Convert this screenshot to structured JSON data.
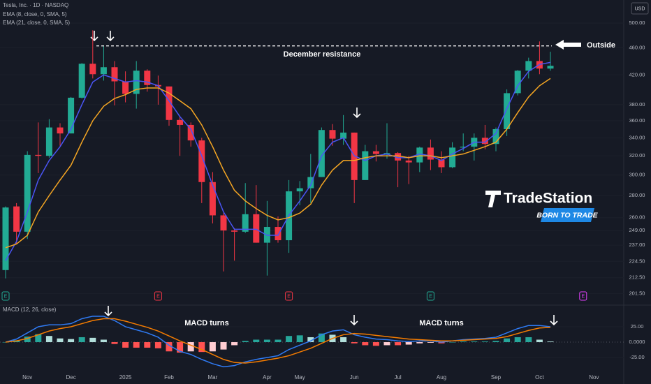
{
  "chart_data": [
    {
      "type": "candlestick",
      "title": "Tesla, Inc. · 1D · NASDAQ",
      "currency": "USD",
      "categories": [
        null,
        null,
        "Nov",
        null,
        null,
        null,
        "Dec",
        null,
        null,
        null,
        null,
        "2025",
        null,
        null,
        null,
        "Feb",
        null,
        null,
        null,
        "Mar",
        null,
        null,
        null,
        null,
        "Apr",
        null,
        null,
        "May",
        null,
        null,
        null,
        null,
        "Jun",
        null,
        null,
        null,
        "Jul",
        null,
        null,
        null,
        "Aug",
        null,
        null,
        null,
        null,
        "Sep",
        null,
        null,
        null,
        "Oct",
        null,
        null,
        null,
        null,
        "Nov",
        null,
        null
      ],
      "open": [
        218,
        270,
        248,
        321,
        320,
        352,
        345,
        389,
        436,
        421,
        431,
        411,
        394,
        426,
        406,
        404,
        361,
        355,
        337,
        293,
        262,
        249,
        248,
        263,
        239,
        252,
        241,
        284,
        287,
        298,
        349,
        339,
        346,
        295,
        325,
        322,
        323,
        315,
        313,
        329,
        316,
        308,
        329,
        330,
        340,
        333,
        350,
        395,
        426,
        440,
        429,
        null,
        null,
        null,
        null,
        null,
        null
      ],
      "high": [
        270,
        273,
        325,
        358,
        362,
        357,
        390,
        437,
        488,
        463,
        440,
        425,
        440,
        428,
        419,
        404,
        365,
        358,
        340,
        303,
        264,
        251,
        292,
        290,
        275,
        261,
        295,
        294,
        322,
        352,
        356,
        367,
        346,
        332,
        332,
        357,
        324,
        320,
        330,
        338,
        325,
        335,
        345,
        345,
        355,
        352,
        400,
        427,
        445,
        470,
        454,
        null,
        null,
        null,
        null,
        null,
        null
      ],
      "low": [
        212,
        238,
        242,
        302,
        318,
        331,
        345,
        388,
        415,
        412,
        379,
        383,
        375,
        397,
        380,
        354,
        320,
        330,
        273,
        255,
        217,
        225,
        247,
        239,
        214,
        239,
        231,
        271,
        273,
        298,
        331,
        332,
        273,
        297,
        314,
        317,
        288,
        291,
        303,
        305,
        302,
        307,
        325,
        315,
        327,
        325,
        342,
        392,
        415,
        421,
        426,
        null,
        null,
        null,
        null,
        null,
        null
      ],
      "close": [
        269,
        248,
        321,
        320,
        352,
        345,
        389,
        436,
        421,
        431,
        411,
        394,
        426,
        406,
        404,
        361,
        355,
        337,
        293,
        262,
        249,
        248,
        263,
        239,
        252,
        241,
        284,
        287,
        298,
        349,
        339,
        346,
        295,
        325,
        322,
        323,
        315,
        313,
        329,
        316,
        308,
        329,
        330,
        340,
        333,
        350,
        395,
        426,
        440,
        429,
        433,
        null,
        null,
        null,
        null,
        null,
        null
      ],
      "up_color": "#22ab94",
      "down_color": "#f23645",
      "series": [
        {
          "name": "EMA (8, close, 0, SMA, 5)",
          "color": "#4a55f5",
          "values": [
            225,
            240,
            265,
            295,
            315,
            330,
            350,
            380,
            410,
            420,
            415,
            410,
            412,
            410,
            405,
            385,
            365,
            350,
            320,
            290,
            265,
            250,
            250,
            250,
            245,
            245,
            262,
            275,
            290,
            320,
            335,
            340,
            320,
            315,
            320,
            322,
            318,
            318,
            322,
            320,
            315,
            322,
            328,
            335,
            335,
            345,
            375,
            405,
            425,
            435,
            438,
            null,
            null,
            null,
            null,
            null,
            null
          ]
        },
        {
          "name": "EMA (21, close, 0, SMA, 5)",
          "color": "#f5a623",
          "values": [
            235,
            238,
            245,
            265,
            280,
            295,
            310,
            335,
            360,
            378,
            388,
            393,
            400,
            402,
            402,
            395,
            385,
            375,
            355,
            330,
            305,
            285,
            275,
            268,
            262,
            258,
            260,
            264,
            272,
            290,
            305,
            315,
            315,
            318,
            320,
            320,
            320,
            318,
            320,
            320,
            318,
            320,
            322,
            326,
            330,
            335,
            350,
            370,
            390,
            405,
            415,
            null,
            null,
            null,
            null,
            null,
            null
          ]
        }
      ],
      "ylim": [
        197,
        513
      ],
      "log_scale": true,
      "grid": true,
      "yticks": [
        {
          "value": 201.5,
          "label": "201.50"
        },
        {
          "value": 212.5,
          "label": "212.50"
        },
        {
          "value": 224.5,
          "label": "224.50"
        },
        {
          "value": 237,
          "label": "237.00"
        },
        {
          "value": 249,
          "label": "249.00"
        },
        {
          "value": 260,
          "label": "260.00"
        },
        {
          "value": 280,
          "label": "280.00"
        },
        {
          "value": 300,
          "label": "300.00"
        },
        {
          "value": 320,
          "label": "320.00"
        },
        {
          "value": 340,
          "label": "340.00"
        },
        {
          "value": 360,
          "label": "360.00"
        },
        {
          "value": 380,
          "label": "380.00"
        },
        {
          "value": 420,
          "label": "420.00"
        },
        {
          "value": 460,
          "label": "460.00"
        },
        {
          "value": 500,
          "label": "500.00"
        }
      ],
      "resistance": {
        "value": 463,
        "label": "December resistance"
      },
      "outside_label": "Outside",
      "earnings": [
        {
          "label": "E",
          "index": 0,
          "color": "#22ab94"
        },
        {
          "label": "E",
          "index": 14,
          "color": "#f23645"
        },
        {
          "label": "E",
          "index": 26,
          "color": "#f23645"
        },
        {
          "label": "E",
          "index": 39,
          "color": "#22ab94"
        },
        {
          "label": "E",
          "index": 53,
          "color": "#e040fb"
        }
      ],
      "logo": {
        "name": "TradeStation",
        "tagline": "BORN TO TRADE"
      }
    },
    {
      "type": "macd",
      "title": "MACD (12, 26, close)",
      "macd_values": [
        0,
        5,
        15,
        25,
        28,
        28,
        30,
        38,
        42,
        42,
        35,
        25,
        20,
        15,
        8,
        -5,
        -15,
        -20,
        -28,
        -35,
        -40,
        -38,
        -32,
        -28,
        -25,
        -22,
        -12,
        -5,
        2,
        12,
        18,
        20,
        12,
        8,
        5,
        4,
        2,
        1,
        2,
        2,
        0,
        2,
        4,
        5,
        6,
        8,
        15,
        22,
        27,
        27,
        25
      ],
      "macd_color": "#2f7bf5",
      "signal_values": [
        0,
        2,
        6,
        12,
        18,
        22,
        25,
        30,
        35,
        38,
        38,
        34,
        29,
        24,
        18,
        10,
        2,
        -5,
        -12,
        -20,
        -28,
        -33,
        -34,
        -32,
        -29,
        -26,
        -22,
        -16,
        -10,
        -2,
        6,
        12,
        14,
        13,
        11,
        9,
        7,
        5,
        4,
        3,
        2,
        2,
        3,
        4,
        5,
        6,
        9,
        14,
        19,
        23,
        24
      ],
      "signal_color": "#f57c00",
      "histogram_values": [
        0,
        3,
        9,
        13,
        10,
        6,
        5,
        8,
        7,
        4,
        -3,
        -9,
        -9,
        -9,
        -10,
        -15,
        -17,
        -15,
        -16,
        -15,
        -12,
        -5,
        2,
        4,
        4,
        4,
        10,
        11,
        8,
        14,
        12,
        8,
        -2,
        -5,
        -6,
        -5,
        -5,
        -4,
        -2,
        -1,
        -2,
        0,
        1,
        1,
        1,
        2,
        6,
        8,
        8,
        4,
        1
      ],
      "annotations": [
        "MACD turns",
        "MACD turns"
      ],
      "ylim": [
        -43,
        51
      ],
      "yticks": [
        {
          "value": 25,
          "label": "25.00"
        },
        {
          "value": 0,
          "label": "0.0000"
        },
        {
          "value": -25,
          "label": "-25.00"
        }
      ]
    }
  ]
}
